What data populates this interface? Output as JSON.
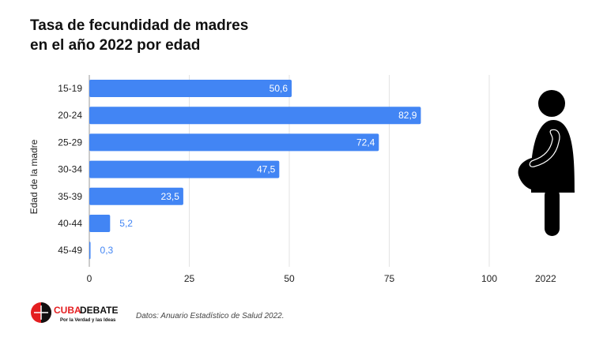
{
  "title_line1": "Tasa de fecundidad de madres",
  "title_line2": "en el año 2022 por edad",
  "source": "Datos: Anuario Estadístico de Salud 2022.",
  "logo": {
    "name": "CUBADEBATE",
    "tagline": "Por la Verdad y las Ideas"
  },
  "chart_data": {
    "type": "bar",
    "orientation": "horizontal",
    "title": "Tasa de fecundidad de madres en el año 2022 por edad",
    "ylabel": "Edad de la madre",
    "xlabel": "",
    "categories": [
      "15-19",
      "20-24",
      "25-29",
      "30-34",
      "35-39",
      "40-44",
      "45-49"
    ],
    "series": [
      {
        "name": "2022",
        "values": [
          50.6,
          82.9,
          72.4,
          47.5,
          23.5,
          5.2,
          0.3
        ]
      }
    ],
    "data_labels": [
      "50,6",
      "82,9",
      "72,4",
      "47,5",
      "23,5",
      "5,2",
      "0,3"
    ],
    "xlim": [
      0,
      100
    ],
    "xticks": [
      0,
      25,
      50,
      75,
      100
    ],
    "xtick_labels": [
      "0",
      "25",
      "50",
      "75",
      "100"
    ],
    "grid": true,
    "bar_color": "#4285f4",
    "legend_label": "2022"
  },
  "icon": "pregnant-woman-icon"
}
